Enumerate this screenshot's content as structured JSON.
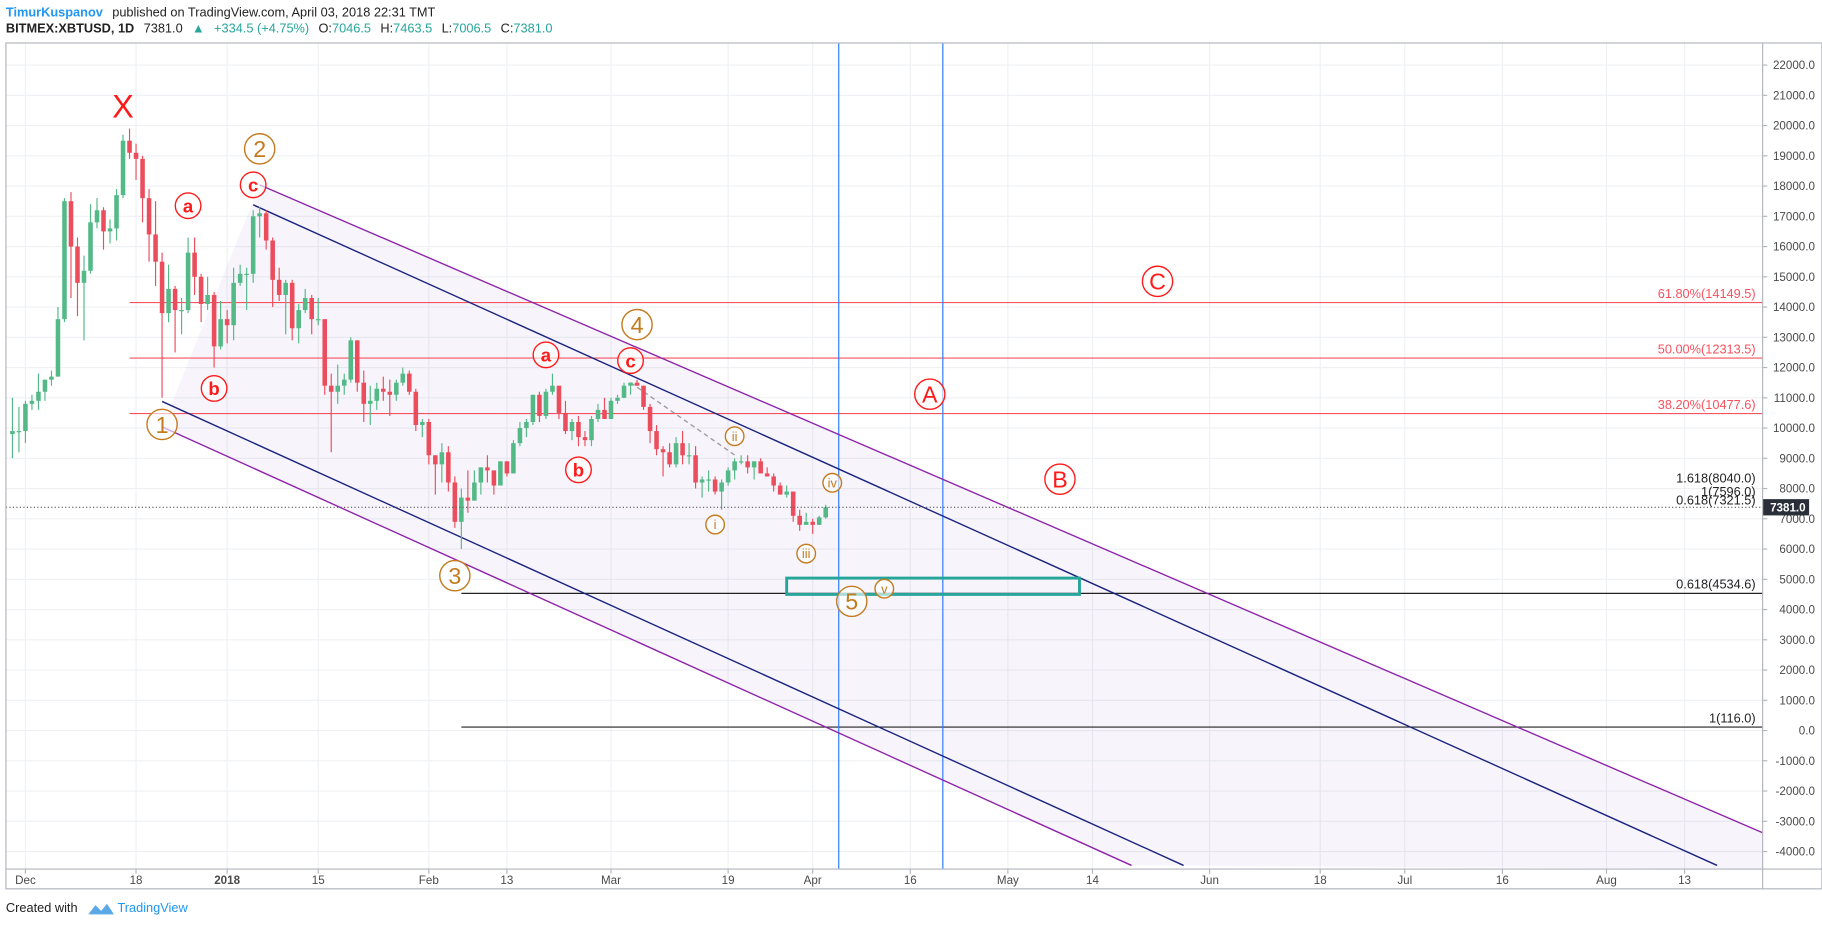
{
  "header": {
    "author": "TimurKuspanov",
    "published": "published on TradingView.com, April 03, 2018 22:31 TMT",
    "symbol": "BITMEX:XBTUSD, 1D",
    "last": "7381.0",
    "direction": "▲",
    "change": "+334.5 (+4.75%)",
    "ohlc": [
      {
        "key": "O:",
        "value": "7046.5"
      },
      {
        "key": "H:",
        "value": "7463.5"
      },
      {
        "key": "L:",
        "value": "7006.5"
      },
      {
        "key": "C:",
        "value": "7381.0"
      }
    ]
  },
  "footer": {
    "created": "Created with",
    "brand": "TradingView"
  },
  "chart_data": {
    "type": "candlestick",
    "up_color": "#53b987",
    "down_color": "#eb4d5c",
    "grid": true,
    "xlim": [
      "2017-11-28",
      "2018-08-25"
    ],
    "xticks": [
      {
        "value": "2017-12-01",
        "label": "Dec"
      },
      {
        "value": "2017-12-18",
        "label": "18"
      },
      {
        "value": "2018-01-01",
        "label": "2018"
      },
      {
        "value": "2018-01-15",
        "label": "15"
      },
      {
        "value": "2018-02-01",
        "label": "Feb"
      },
      {
        "value": "2018-02-13",
        "label": "13"
      },
      {
        "value": "2018-03-01",
        "label": "Mar"
      },
      {
        "value": "2018-03-19",
        "label": "19"
      },
      {
        "value": "2018-04-01",
        "label": "Apr"
      },
      {
        "value": "2018-04-16",
        "label": "16"
      },
      {
        "value": "2018-05-01",
        "label": "May"
      },
      {
        "value": "2018-05-14",
        "label": "14"
      },
      {
        "value": "2018-06-01",
        "label": "Jun"
      },
      {
        "value": "2018-06-18",
        "label": "18"
      },
      {
        "value": "2018-07-01",
        "label": "Jul"
      },
      {
        "value": "2018-07-16",
        "label": "16"
      },
      {
        "value": "2018-08-01",
        "label": "Aug"
      },
      {
        "value": "2018-08-13",
        "label": "13"
      }
    ],
    "ylim": [
      -4580,
      22730
    ],
    "yticks": [
      {
        "value": -4000,
        "label": "-4000.0"
      },
      {
        "value": -3000,
        "label": "-3000.0"
      },
      {
        "value": -2000,
        "label": "-2000.0"
      },
      {
        "value": -1000,
        "label": "-1000.0"
      },
      {
        "value": 0,
        "label": "0.0"
      },
      {
        "value": 1000,
        "label": "1000.0"
      },
      {
        "value": 2000,
        "label": "2000.0"
      },
      {
        "value": 3000,
        "label": "3000.0"
      },
      {
        "value": 4000,
        "label": "4000.0"
      },
      {
        "value": 5000,
        "label": "5000.0"
      },
      {
        "value": 6000,
        "label": "6000.0"
      },
      {
        "value": 7000,
        "label": "7000.0"
      },
      {
        "value": 8000,
        "label": "8000.0"
      },
      {
        "value": 9000,
        "label": "9000.0"
      },
      {
        "value": 10000,
        "label": "10000.0"
      },
      {
        "value": 11000,
        "label": "11000.0"
      },
      {
        "value": 12000,
        "label": "12000.0"
      },
      {
        "value": 13000,
        "label": "13000.0"
      },
      {
        "value": 14000,
        "label": "14000.0"
      },
      {
        "value": 15000,
        "label": "15000.0"
      },
      {
        "value": 16000,
        "label": "16000.0"
      },
      {
        "value": 17000,
        "label": "17000.0"
      },
      {
        "value": 18000,
        "label": "18000.0"
      },
      {
        "value": 19000,
        "label": "19000.0"
      },
      {
        "value": 20000,
        "label": "20000.0"
      },
      {
        "value": 21000,
        "label": "21000.0"
      },
      {
        "value": 22000,
        "label": "22000.0"
      }
    ],
    "x": [
      "2017-11-29",
      "2017-11-30",
      "2017-12-01",
      "2017-12-02",
      "2017-12-03",
      "2017-12-04",
      "2017-12-05",
      "2017-12-06",
      "2017-12-07",
      "2017-12-08",
      "2017-12-09",
      "2017-12-10",
      "2017-12-11",
      "2017-12-12",
      "2017-12-13",
      "2017-12-14",
      "2017-12-15",
      "2017-12-16",
      "2017-12-17",
      "2017-12-18",
      "2017-12-19",
      "2017-12-20",
      "2017-12-21",
      "2017-12-22",
      "2017-12-23",
      "2017-12-24",
      "2017-12-25",
      "2017-12-26",
      "2017-12-27",
      "2017-12-28",
      "2017-12-29",
      "2017-12-30",
      "2017-12-31",
      "2018-01-01",
      "2018-01-02",
      "2018-01-03",
      "2018-01-04",
      "2018-01-05",
      "2018-01-06",
      "2018-01-07",
      "2018-01-08",
      "2018-01-09",
      "2018-01-10",
      "2018-01-11",
      "2018-01-12",
      "2018-01-13",
      "2018-01-14",
      "2018-01-15",
      "2018-01-16",
      "2018-01-17",
      "2018-01-18",
      "2018-01-19",
      "2018-01-20",
      "2018-01-21",
      "2018-01-22",
      "2018-01-23",
      "2018-01-24",
      "2018-01-25",
      "2018-01-26",
      "2018-01-27",
      "2018-01-28",
      "2018-01-29",
      "2018-01-30",
      "2018-01-31",
      "2018-02-01",
      "2018-02-02",
      "2018-02-03",
      "2018-02-04",
      "2018-02-05",
      "2018-02-06",
      "2018-02-07",
      "2018-02-08",
      "2018-02-09",
      "2018-02-10",
      "2018-02-11",
      "2018-02-12",
      "2018-02-13",
      "2018-02-14",
      "2018-02-15",
      "2018-02-16",
      "2018-02-17",
      "2018-02-18",
      "2018-02-19",
      "2018-02-20",
      "2018-02-21",
      "2018-02-22",
      "2018-02-23",
      "2018-02-24",
      "2018-02-25",
      "2018-02-26",
      "2018-02-27",
      "2018-02-28",
      "2018-03-01",
      "2018-03-02",
      "2018-03-03",
      "2018-03-04",
      "2018-03-05",
      "2018-03-06",
      "2018-03-07",
      "2018-03-08",
      "2018-03-09",
      "2018-03-10",
      "2018-03-11",
      "2018-03-12",
      "2018-03-13",
      "2018-03-14",
      "2018-03-15",
      "2018-03-16",
      "2018-03-17",
      "2018-03-18",
      "2018-03-19",
      "2018-03-20",
      "2018-03-21",
      "2018-03-22",
      "2018-03-23",
      "2018-03-24",
      "2018-03-25",
      "2018-03-26",
      "2018-03-27",
      "2018-03-28",
      "2018-03-29",
      "2018-03-30",
      "2018-03-31",
      "2018-04-01",
      "2018-04-02",
      "2018-04-03"
    ],
    "open": [
      9800,
      9900,
      9900,
      10800,
      10900,
      11200,
      11600,
      11700,
      13600,
      17500,
      16000,
      14800,
      15200,
      16800,
      17200,
      16500,
      16600,
      17700,
      19500,
      19100,
      18900,
      17600,
      16400,
      15500,
      13800,
      14600,
      13900,
      13900,
      15800,
      15000,
      14100,
      14400,
      12700,
      13600,
      13400,
      14800,
      15100,
      15100,
      17000,
      17100,
      16200,
      14900,
      14400,
      14800,
      13300,
      13900,
      14300,
      13600,
      13600,
      11400,
      11200,
      11400,
      11600,
      12900,
      11500,
      10800,
      10900,
      11300,
      11200,
      11100,
      11500,
      11800,
      11200,
      10100,
      10200,
      9100,
      8800,
      9200,
      8200,
      6900,
      7700,
      7600,
      8200,
      8700,
      8600,
      8100,
      8900,
      8500,
      9500,
      10000,
      10200,
      11100,
      10400,
      11200,
      11400,
      10500,
      9900,
      10200,
      9700,
      9600,
      10300,
      10600,
      10300,
      10900,
      11000,
      11400,
      11500,
      11400,
      10700,
      9900,
      9300,
      9200,
      8800,
      9500,
      9100,
      9100,
      8200,
      8300,
      8300,
      7900,
      8200,
      8600,
      8900,
      8900,
      8700,
      8900,
      8500,
      8400,
      8100,
      7800,
      7900,
      7100,
      6800,
      6900,
      6800,
      7046.5
    ],
    "high": [
      11000,
      10700,
      10900,
      11100,
      11800,
      11600,
      11900,
      14000,
      17600,
      17800,
      16300,
      15700,
      17400,
      17600,
      17300,
      16900,
      17900,
      19700,
      19900,
      19400,
      19000,
      17900,
      17500,
      15800,
      15400,
      14700,
      14300,
      16300,
      16300,
      15100,
      15000,
      14500,
      14200,
      13900,
      15300,
      15400,
      15300,
      17200,
      17300,
      17200,
      16300,
      15300,
      14900,
      14900,
      14100,
      14600,
      14400,
      14300,
      13600,
      11800,
      12100,
      11800,
      13000,
      12900,
      11900,
      11400,
      11500,
      11700,
      11600,
      11600,
      12000,
      11900,
      11300,
      10300,
      10300,
      9100,
      9500,
      9400,
      8400,
      8000,
      8600,
      8600,
      8700,
      9100,
      8600,
      8900,
      8900,
      9600,
      10200,
      10300,
      11100,
      11200,
      11300,
      11800,
      11400,
      10900,
      10300,
      10400,
      9900,
      10400,
      10800,
      11000,
      11000,
      11100,
      11500,
      11500,
      11600,
      11400,
      10800,
      10100,
      9400,
      9500,
      9700,
      9900,
      9500,
      9400,
      8400,
      8600,
      8400,
      8300,
      8700,
      9000,
      9100,
      9100,
      8900,
      9000,
      8700,
      8500,
      8200,
      8100,
      7900,
      7300,
      7200,
      7000,
      7100,
      7463.5
    ],
    "low": [
      9000,
      9200,
      9500,
      10600,
      10600,
      10900,
      11400,
      11700,
      13500,
      14300,
      13700,
      12900,
      15100,
      16600,
      15900,
      16100,
      16200,
      17600,
      18900,
      18200,
      16800,
      15500,
      14700,
      11000,
      13500,
      12500,
      13100,
      13800,
      14400,
      13500,
      13900,
      12000,
      12600,
      12800,
      12900,
      14700,
      13900,
      14800,
      16300,
      15900,
      14000,
      14200,
      13100,
      12900,
      12800,
      13800,
      13100,
      13400,
      11100,
      9200,
      10800,
      11100,
      11500,
      11200,
      10200,
      10100,
      10600,
      10900,
      10400,
      10900,
      11400,
      11100,
      9900,
      9700,
      8800,
      7800,
      8200,
      7900,
      6700,
      6000,
      7200,
      7600,
      7800,
      8200,
      7800,
      8100,
      8400,
      8500,
      9400,
      9700,
      10100,
      10200,
      10300,
      11100,
      10300,
      9800,
      9600,
      9400,
      9400,
      9400,
      10200,
      10300,
      10300,
      10800,
      11000,
      11100,
      11400,
      10600,
      9500,
      9100,
      8400,
      8700,
      8700,
      8800,
      8800,
      8000,
      7700,
      7900,
      7800,
      7300,
      8100,
      8300,
      8800,
      8500,
      8300,
      8500,
      8400,
      7900,
      7800,
      7700,
      6900,
      6600,
      6800,
      6500,
      6800,
      7006.5
    ],
    "close": [
      9900,
      9900,
      10800,
      10900,
      11200,
      11600,
      11700,
      13600,
      17500,
      16000,
      14800,
      15200,
      16800,
      17200,
      16500,
      16600,
      17700,
      19500,
      19100,
      18900,
      17600,
      16400,
      15500,
      13800,
      14600,
      13900,
      13900,
      15800,
      15000,
      14100,
      14400,
      12700,
      13600,
      13400,
      14800,
      15100,
      15100,
      17000,
      17100,
      16200,
      14900,
      14400,
      14800,
      13300,
      13900,
      14300,
      13600,
      13600,
      11400,
      11200,
      11400,
      11600,
      12900,
      11500,
      10800,
      10900,
      11300,
      11200,
      11100,
      11500,
      11800,
      11200,
      10100,
      10200,
      9100,
      8800,
      9200,
      8200,
      6900,
      7700,
      7600,
      8200,
      8700,
      8600,
      8100,
      8900,
      8500,
      9500,
      10000,
      10200,
      11100,
      10400,
      11200,
      11400,
      10500,
      9900,
      10200,
      9700,
      9600,
      10300,
      10600,
      10300,
      10900,
      11000,
      11400,
      11500,
      11400,
      10700,
      9900,
      9300,
      9200,
      8800,
      9500,
      9100,
      9100,
      8200,
      8300,
      8300,
      7900,
      8200,
      8600,
      8900,
      8900,
      8700,
      8900,
      8500,
      8400,
      8100,
      7800,
      7900,
      7100,
      6800,
      6900,
      6800,
      7046.5,
      7381
    ],
    "price_marker": {
      "value": 7381,
      "label": "7381.0"
    },
    "levels": [
      {
        "value": 14149.5,
        "label": "61.80%(14149.5)",
        "start": "2017-12-17",
        "color": "#f7525f",
        "line": true
      },
      {
        "value": 12313.5,
        "label": "50.00%(12313.5)",
        "start": "2017-12-17",
        "color": "#f7525f",
        "line": true
      },
      {
        "value": 10477.6,
        "label": "38.20%(10477.6)",
        "start": "2017-12-17",
        "color": "#f7525f",
        "line": true
      },
      {
        "value": 8040.0,
        "label": "1.618(8040.0)",
        "start": "2018-02-06",
        "color": "#222222",
        "line": false
      },
      {
        "value": 7596.0,
        "label": "1(7596.0)",
        "start": "2018-02-06",
        "color": "#222222",
        "line": false
      },
      {
        "value": 7321.5,
        "label": "0.618(7321.5)",
        "start": "2018-02-06",
        "color": "#222222",
        "line": false
      },
      {
        "value": 4534.6,
        "label": "0.618(4534.6)",
        "start": "2018-02-06",
        "color": "#222222",
        "line": true
      },
      {
        "value": 116.0,
        "label": "1(116.0)",
        "start": "2018-02-06",
        "color": "#222222",
        "line": true
      }
    ],
    "lines": [
      {
        "points": [
          [
            "2018-01-06",
            18040
          ],
          [
            "2018-08-25",
            -3380
          ]
        ],
        "color": "#8e24aa",
        "dashed": false
      },
      {
        "points": [
          [
            "2018-01-05",
            17380
          ],
          [
            "2018-08-18",
            -4460
          ]
        ],
        "color": "#1a237e",
        "dashed": false
      },
      {
        "points": [
          [
            "2017-12-22",
            10880
          ],
          [
            "2018-05-28",
            -4460
          ]
        ],
        "color": "#1a237e",
        "dashed": false
      },
      {
        "points": [
          [
            "2017-12-22",
            10040
          ],
          [
            "2018-05-20",
            -4460
          ]
        ],
        "color": "#8e24aa",
        "dashed": false
      },
      {
        "points": [
          [
            "2018-03-04",
            11500
          ],
          [
            "2018-03-20",
            9110
          ]
        ],
        "color": "#9e9e9e",
        "dashed": true
      }
    ],
    "vlines": [
      {
        "x": "2018-04-05",
        "color": "#2979ff"
      },
      {
        "x": "2018-04-21",
        "color": "#2979ff"
      }
    ],
    "rects": [
      {
        "x": [
          "2018-03-28",
          "2018-05-12"
        ],
        "y": [
          4500,
          5040
        ],
        "color": "#26a69a"
      }
    ],
    "annotations": [
      {
        "text": "X",
        "x": "2017-12-16",
        "y": 20650,
        "color": "#ff1a1a",
        "style": "plain"
      },
      {
        "text": "2",
        "x": "2018-01-06",
        "y": 19230,
        "color": "#c47a1e",
        "style": "major"
      },
      {
        "text": "c",
        "x": "2018-01-05",
        "y": 18040,
        "color": "#ff1a1a",
        "style": "minor"
      },
      {
        "text": "a",
        "x": "2017-12-26",
        "y": 17350,
        "color": "#ff1a1a",
        "style": "minor"
      },
      {
        "text": "b",
        "x": "2017-12-30",
        "y": 11310,
        "color": "#ff1a1a",
        "style": "minor"
      },
      {
        "text": "1",
        "x": "2017-12-22",
        "y": 10120,
        "color": "#c47a1e",
        "style": "major"
      },
      {
        "text": "3",
        "x": "2018-02-05",
        "y": 5120,
        "color": "#c47a1e",
        "style": "major"
      },
      {
        "text": "a",
        "x": "2018-02-19",
        "y": 12420,
        "color": "#ff1a1a",
        "style": "minor"
      },
      {
        "text": "b",
        "x": "2018-02-24",
        "y": 8620,
        "color": "#ff1a1a",
        "style": "minor"
      },
      {
        "text": "4",
        "x": "2018-03-05",
        "y": 13420,
        "color": "#c47a1e",
        "style": "major"
      },
      {
        "text": "c",
        "x": "2018-03-04",
        "y": 12230,
        "color": "#ff1a1a",
        "style": "minor"
      },
      {
        "text": "ii",
        "x": "2018-03-20",
        "y": 9730,
        "color": "#c47a1e",
        "style": "sub"
      },
      {
        "text": "i",
        "x": "2018-03-17",
        "y": 6810,
        "color": "#c47a1e",
        "style": "sub"
      },
      {
        "text": "iii",
        "x": "2018-03-31",
        "y": 5850,
        "color": "#c47a1e",
        "style": "sub"
      },
      {
        "text": "iv",
        "x": "2018-04-04",
        "y": 8190,
        "color": "#c47a1e",
        "style": "sub"
      },
      {
        "text": "v",
        "x": "2018-04-12",
        "y": 4690,
        "color": "#c47a1e",
        "style": "sub"
      },
      {
        "text": "5",
        "x": "2018-04-07",
        "y": 4270,
        "color": "#c47a1e",
        "style": "major"
      },
      {
        "text": "A",
        "x": "2018-04-19",
        "y": 11120,
        "color": "#ff1a1a",
        "style": "major"
      },
      {
        "text": "B",
        "x": "2018-05-09",
        "y": 8310,
        "color": "#ff1a1a",
        "style": "major"
      },
      {
        "text": "C",
        "x": "2018-05-24",
        "y": 14850,
        "color": "#ff1a1a",
        "style": "major"
      }
    ]
  }
}
